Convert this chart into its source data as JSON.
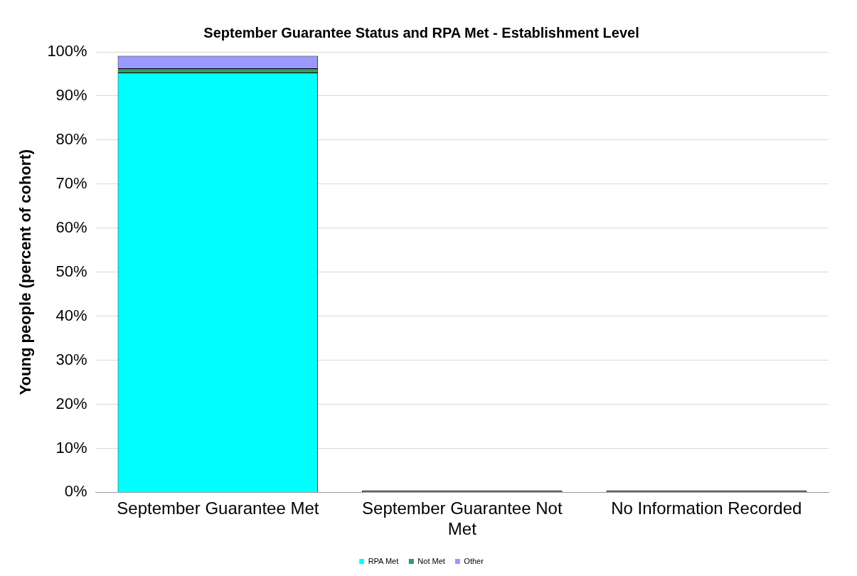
{
  "chart_data": {
    "type": "bar",
    "title": "September Guarantee Status and RPA Met - Establishment Level",
    "ylabel": "Young people (percent of cohort)",
    "categories": [
      "September Guarantee Met",
      "September Guarantee Not Met",
      "No Information Recorded"
    ],
    "stacked": true,
    "series": [
      {
        "name": "RPA Met",
        "color": "#00ffff",
        "values": [
          95.3,
          0,
          0
        ]
      },
      {
        "name": "Not Met",
        "color": "#339966",
        "values": [
          1.0,
          0,
          0
        ]
      },
      {
        "name": "Other",
        "color": "#9999ff",
        "values": [
          2.8,
          0.4,
          0.4
        ]
      }
    ],
    "ylim": [
      0,
      100
    ],
    "yticks": [
      {
        "value": 0,
        "label": "0%"
      },
      {
        "value": 10,
        "label": "10%"
      },
      {
        "value": 20,
        "label": "20%"
      },
      {
        "value": 30,
        "label": "30%"
      },
      {
        "value": 40,
        "label": "40%"
      },
      {
        "value": 50,
        "label": "50%"
      },
      {
        "value": 60,
        "label": "60%"
      },
      {
        "value": 70,
        "label": "70%"
      },
      {
        "value": 80,
        "label": "80%"
      },
      {
        "value": 90,
        "label": "90%"
      },
      {
        "value": 100,
        "label": "100%"
      }
    ],
    "grid": "y",
    "legend": "bottom"
  }
}
